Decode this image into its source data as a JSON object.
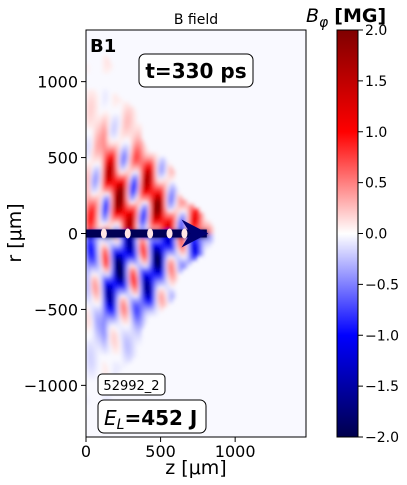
{
  "chart_data": {
    "type": "heatmap",
    "title": "B field",
    "xlabel": "z [μm]",
    "ylabel": "r [μm]",
    "xlim": [
      0,
      1475
    ],
    "ylim": [
      -1340,
      1340
    ],
    "xticks": [
      0,
      500,
      1000
    ],
    "xtick_labels": [
      "0",
      "500",
      "1000"
    ],
    "yticks": [
      1000,
      500,
      0,
      -500,
      -1000
    ],
    "ytick_labels": [
      "1000",
      "500",
      "0",
      "−500",
      "−1000"
    ],
    "colorbar": {
      "label_main": "B",
      "label_sub": "φ",
      "label_unit": "[MG]",
      "min": -2.0,
      "max": 2.0,
      "ticks": [
        2.0,
        1.5,
        1.0,
        0.5,
        0.0,
        -0.5,
        -1.0,
        -1.5,
        -2.0
      ],
      "tick_labels": [
        "2.0",
        "1.5",
        "1.0",
        "0.5",
        "0.0",
        "−0.5",
        "−1.0",
        "−1.5",
        "−2.0"
      ],
      "colormap": "seismic",
      "colors": [
        "#00004c",
        "#0000ff",
        "#ffffff",
        "#ff0000",
        "#7f0000"
      ]
    },
    "panel_label": "B1",
    "time_label": "t=330 ps",
    "shot_label": "52992_2",
    "energy_label_main": "E",
    "energy_label_sub": "L",
    "energy_label_value": "=452 J",
    "field_structure": {
      "plasma_front_z_at_axis": 850,
      "plasma_front_z_at_r1340": 40,
      "axis_negative_channel_z": [
        0,
        810
      ],
      "field_sign_above_axis": "positive",
      "field_sign_below_axis": "negative",
      "peak_abs_field_MG": 2.0
    }
  }
}
